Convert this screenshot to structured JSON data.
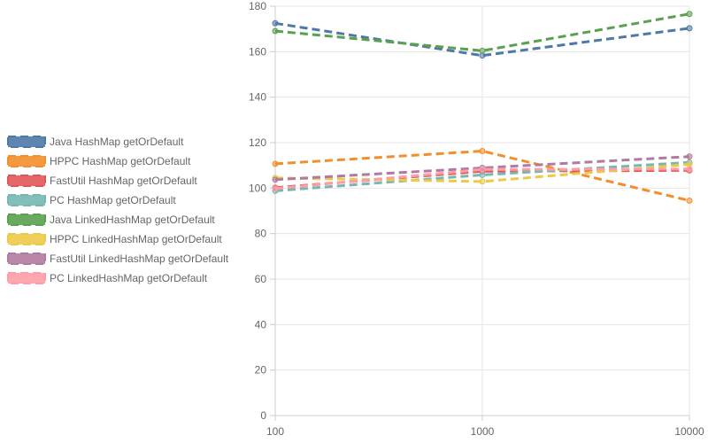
{
  "chart_data": {
    "type": "line",
    "title": "",
    "xlabel": "",
    "ylabel": "",
    "x": [
      100,
      1000,
      10000
    ],
    "x_tick_labels": [
      "100",
      "1000",
      "10000"
    ],
    "x_scale": "log",
    "ylim": [
      0,
      180
    ],
    "y_ticks": [
      0,
      20,
      40,
      60,
      80,
      100,
      120,
      140,
      160,
      180
    ],
    "grid": true,
    "legend_position": "left",
    "line_style": "dashed",
    "series": [
      {
        "name": "Java HashMap  getOrDefault",
        "color": "#4e79a7",
        "values": [
          172.5,
          158.3,
          170.3
        ]
      },
      {
        "name": "HPPC HashMap  getOrDefault",
        "color": "#f28e2b",
        "values": [
          110.7,
          116.3,
          94.5
        ]
      },
      {
        "name": "FastUtil HashMap  getOrDefault",
        "color": "#e15759",
        "values": [
          100.2,
          107.4,
          107.8
        ]
      },
      {
        "name": "PC HashMap  getOrDefault",
        "color": "#76b7b2",
        "values": [
          98.8,
          105.8,
          111.3
        ]
      },
      {
        "name": "Java LinkedHashMap  getOrDefault",
        "color": "#59a14f",
        "values": [
          169.1,
          160.4,
          176.6
        ]
      },
      {
        "name": "HPPC LinkedHashMap  getOrDefault",
        "color": "#edc948",
        "values": [
          104.5,
          102.9,
          110.5
        ]
      },
      {
        "name": "FastUtil LinkedHashMap  getOrDefault",
        "color": "#b07aa1",
        "values": [
          103.7,
          108.9,
          113.9
        ]
      },
      {
        "name": "PC LinkedHashMap  getOrDefault",
        "color": "#ff9da7",
        "values": [
          99.8,
          108.2,
          108.4
        ]
      }
    ]
  }
}
